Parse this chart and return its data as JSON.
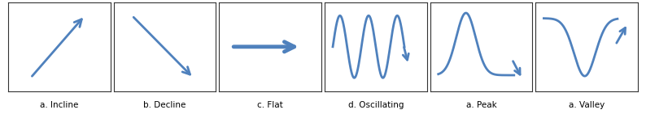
{
  "labels": [
    "a. Incline",
    "b. Decline",
    "c. Flat",
    "d. Oscillating",
    "a. Peak",
    "a. Valley"
  ],
  "arrow_color": "#4f81bd",
  "box_color": "#333333",
  "bg_color": "#ffffff",
  "label_fontsize": 7.5,
  "fig_width": 7.94,
  "fig_height": 1.41,
  "n_panels": 6,
  "lw": 2.0
}
